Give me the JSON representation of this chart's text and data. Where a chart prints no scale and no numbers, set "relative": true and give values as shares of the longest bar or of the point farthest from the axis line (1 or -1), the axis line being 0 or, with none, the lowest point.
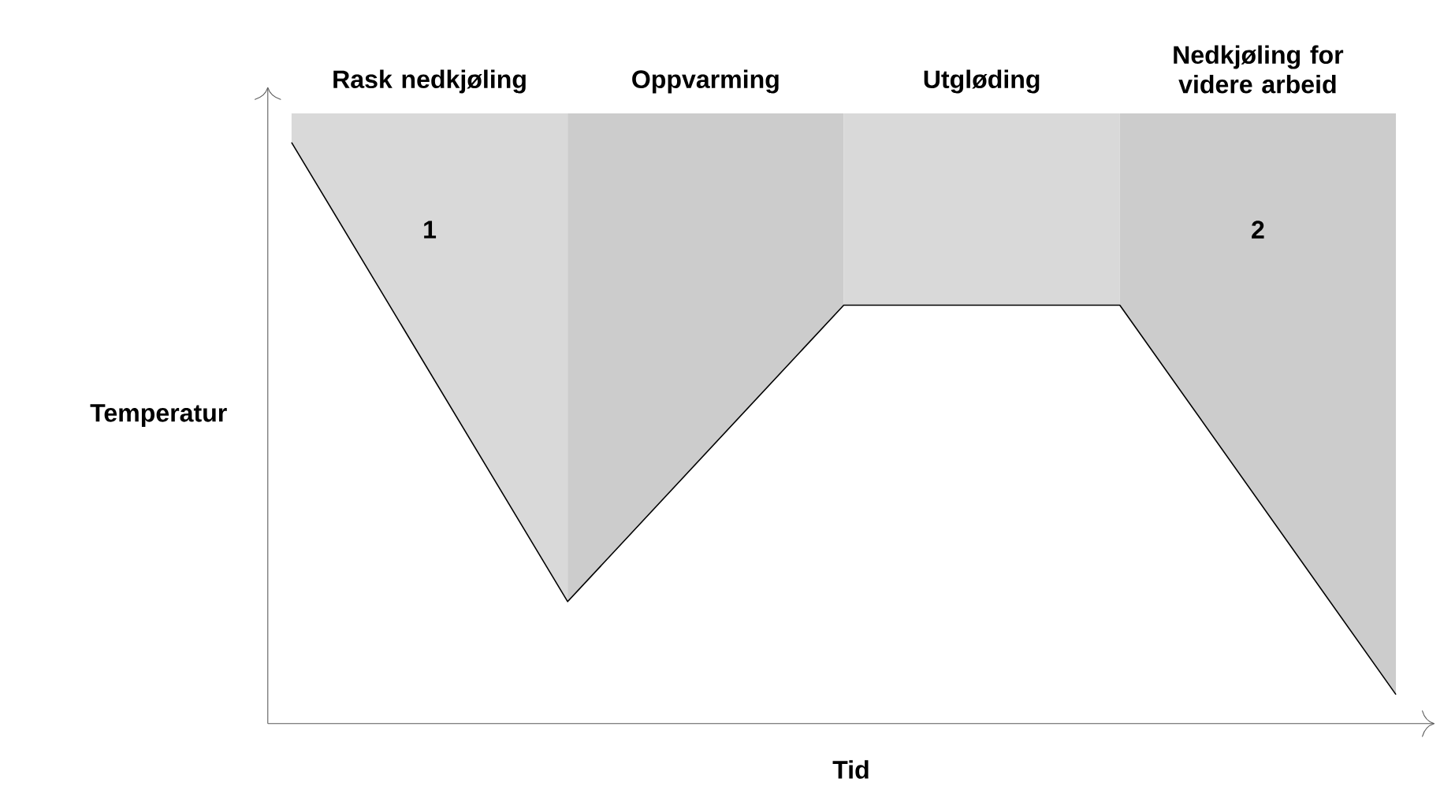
{
  "chart_data": {
    "type": "line",
    "relative": true,
    "categories": [
      null,
      null,
      null,
      null,
      null
    ],
    "series": [
      {
        "color": "#000000",
        "values": [
          1,
          0.21,
          0.72,
          0.72,
          0.05
        ]
      }
    ],
    "marker": "none",
    "xlabel": "Tid",
    "ylabel": "Temperatur",
    "annotations": [
      "Rask nedkjøling",
      "Oppvarming",
      "Utgløding",
      "Nedkjøling for videre arbeid",
      "1",
      "2"
    ]
  }
}
